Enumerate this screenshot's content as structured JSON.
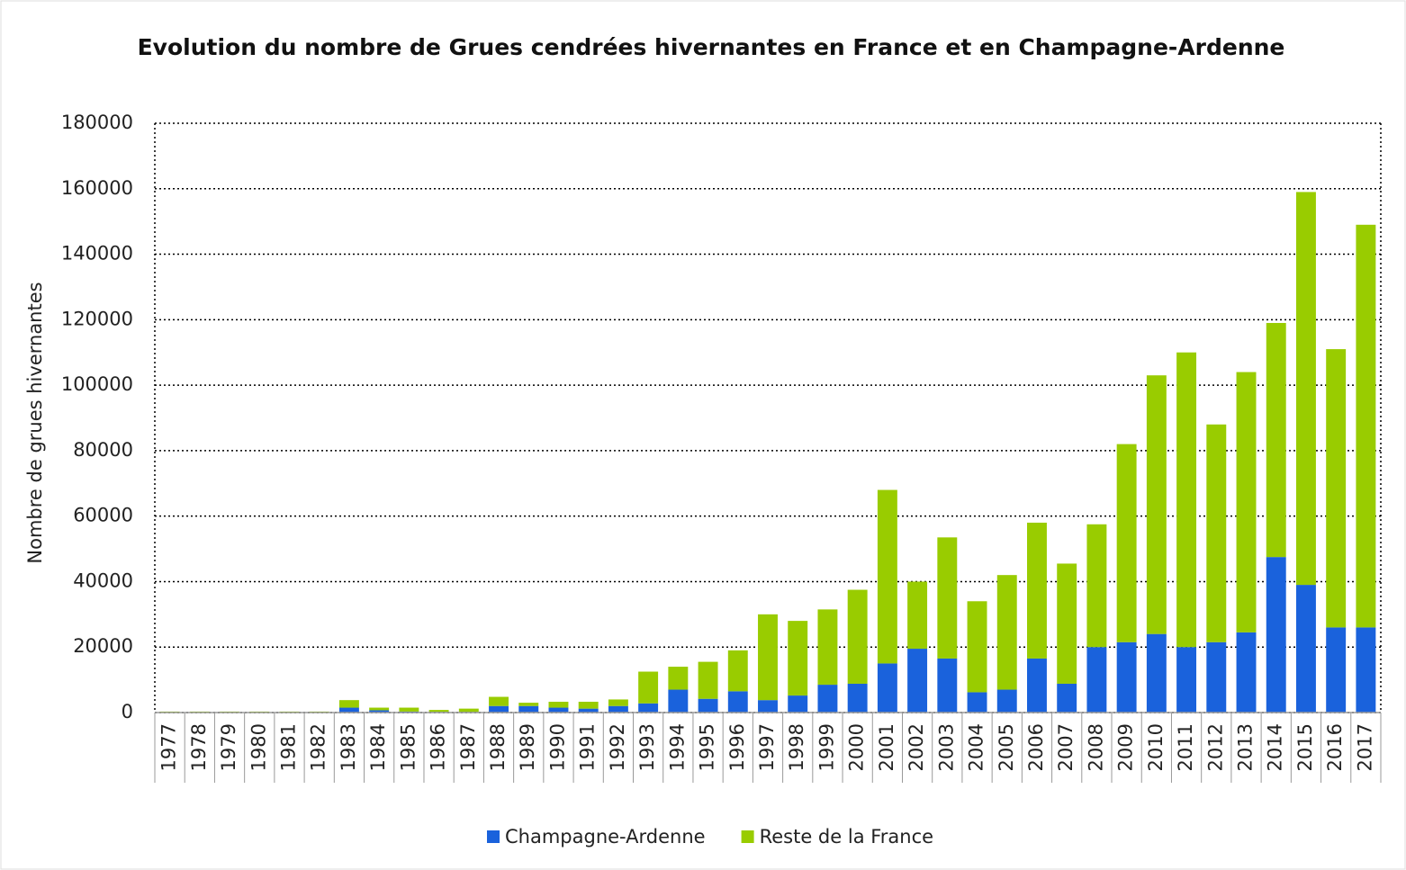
{
  "chart_data": {
    "type": "bar",
    "stacked": true,
    "title": "Evolution du nombre de Grues cendrées hivernantes en France et en Champagne-Ardenne",
    "y_label": "Nombre de grues hivernantes",
    "categories": [
      "1977",
      "1978",
      "1979",
      "1980",
      "1981",
      "1982",
      "1983",
      "1984",
      "1985",
      "1986",
      "1987",
      "1988",
      "1989",
      "1990",
      "1991",
      "1992",
      "1993",
      "1994",
      "1995",
      "1996",
      "1997",
      "1998",
      "1999",
      "2000",
      "2001",
      "2002",
      "2003",
      "2004",
      "2005",
      "2006",
      "2007",
      "2008",
      "2009",
      "2010",
      "2011",
      "2012",
      "2013",
      "2014",
      "2015",
      "2016",
      "2017"
    ],
    "series": [
      {
        "name": "Champagne-Ardenne",
        "color": "#1a62dc",
        "values": [
          0,
          0,
          0,
          0,
          0,
          0,
          1500,
          700,
          300,
          200,
          200,
          2000,
          2000,
          1500,
          1200,
          2000,
          2800,
          7000,
          4200,
          6500,
          3800,
          5200,
          8500,
          8800,
          15000,
          19500,
          16500,
          6200,
          7000,
          16500,
          8800,
          20000,
          21500,
          24000,
          20000,
          21500,
          24500,
          47500,
          39000,
          26000,
          26000
        ]
      },
      {
        "name": "Reste de la France",
        "color": "#99cc00",
        "values": [
          300,
          300,
          300,
          300,
          300,
          300,
          2300,
          800,
          1200,
          600,
          1000,
          2800,
          1000,
          1800,
          2100,
          2000,
          9700,
          7000,
          11300,
          12500,
          26200,
          22800,
          23000,
          28700,
          53000,
          20500,
          37000,
          27800,
          35000,
          41500,
          36700,
          37500,
          60500,
          79000,
          90000,
          66500,
          79500,
          71500,
          120000,
          85000,
          123000
        ]
      }
    ],
    "ylim": [
      0,
      180000
    ],
    "yticks": [
      0,
      20000,
      40000,
      60000,
      80000,
      100000,
      120000,
      140000,
      160000,
      180000
    ],
    "grid": true,
    "legend": "bottom"
  }
}
